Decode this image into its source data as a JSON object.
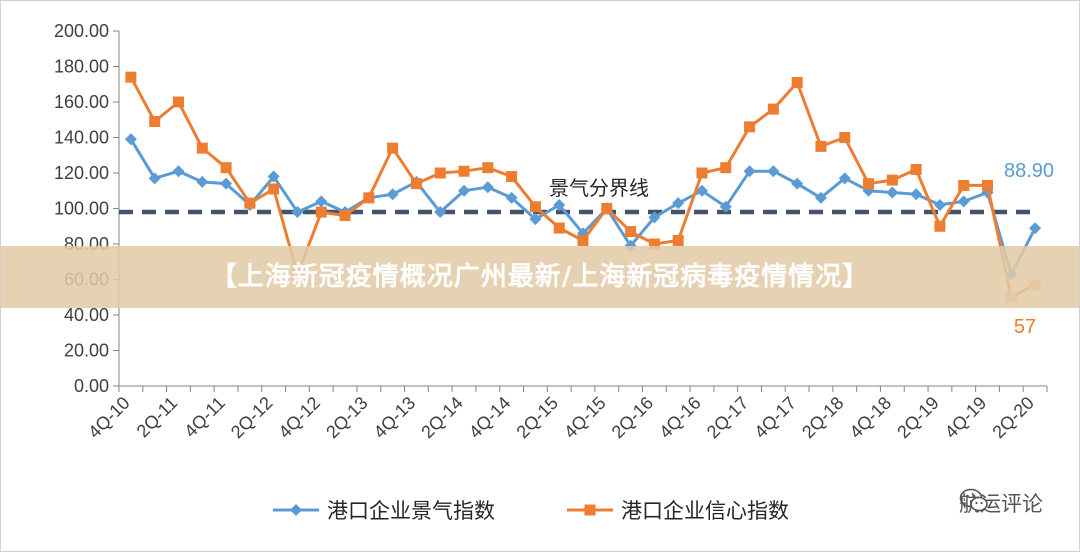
{
  "banner": {
    "text": "【上海新冠疫情概况广州最新/上海新冠病毒疫情情况】"
  },
  "watermark": {
    "text": "航运评论",
    "icon": "wechat-icon"
  },
  "chart_data": {
    "type": "line",
    "title": "",
    "xlabel": "",
    "ylabel": "",
    "ylim": [
      0,
      200
    ],
    "y_ticks": [
      "0.00",
      "20.00",
      "40.00",
      "60.00",
      "80.00",
      "100.00",
      "120.00",
      "140.00",
      "160.00",
      "180.00",
      "200.00"
    ],
    "x_tick_labels": [
      "4Q-10",
      "2Q-11",
      "4Q-11",
      "2Q-12",
      "4Q-12",
      "2Q-13",
      "4Q-13",
      "2Q-14",
      "4Q-14",
      "2Q-15",
      "4Q-15",
      "2Q-16",
      "4Q-16",
      "2Q-17",
      "4Q-17",
      "2Q-18",
      "4Q-18",
      "2Q-19",
      "4Q-19",
      "2Q-20"
    ],
    "grid": false,
    "legend": "bottom",
    "reference_line": {
      "label": "景气分界线",
      "value": 98,
      "color": "#44546a"
    },
    "series": [
      {
        "name": "港口企业景气指数",
        "color": "#5b9bd5",
        "marker": "diamond",
        "end_label": "88.90",
        "values": [
          139,
          117,
          121,
          115,
          114,
          102,
          118,
          98,
          104,
          98,
          106,
          108,
          115,
          98,
          110,
          112,
          106,
          94,
          102,
          86,
          100,
          79,
          95,
          103,
          110,
          101,
          121,
          121,
          114,
          106,
          117,
          110,
          109,
          108,
          102,
          104,
          109,
          63,
          88.9
        ]
      },
      {
        "name": "港口企业信心指数",
        "color": "#ed7d31",
        "marker": "square",
        "end_label": "57",
        "values": [
          174,
          149,
          160,
          134,
          123,
          103,
          111,
          63,
          98,
          96,
          106,
          134,
          114,
          120,
          121,
          123,
          118,
          101,
          89,
          82,
          100,
          87,
          80,
          82,
          120,
          123,
          146,
          156,
          171,
          135,
          140,
          114,
          116,
          122,
          90,
          113,
          113,
          50,
          57
        ]
      }
    ]
  }
}
